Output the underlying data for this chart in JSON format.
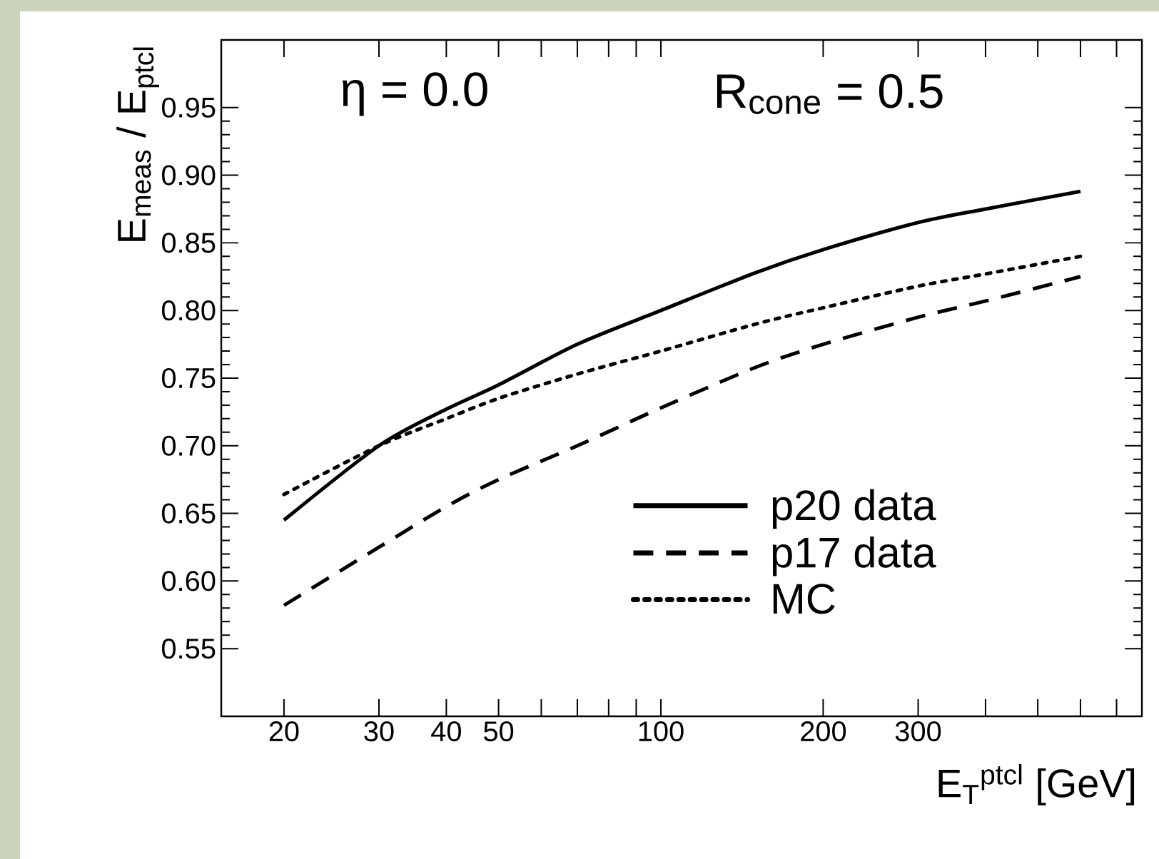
{
  "chart_data": {
    "type": "line",
    "xlabel": "E$_{T}$$^{ptcl}$ [GeV]",
    "ylabel": "E$_{meas}$ / E$_{ptcl}$",
    "annotations": [
      "η = 0.0",
      "R$_{cone}$ = 0.5"
    ],
    "log": "x",
    "xlim": [
      15.3,
      780
    ],
    "ylim": [
      0.5,
      1.0
    ],
    "xticks": [
      20,
      30,
      40,
      50,
      {
        "value": 60,
        "label": null
      },
      {
        "value": 70,
        "label": null
      },
      {
        "value": 80,
        "label": null
      },
      {
        "value": 90,
        "label": null
      },
      100,
      200,
      300,
      {
        "value": 400,
        "label": null
      },
      {
        "value": 500,
        "label": null
      },
      {
        "value": 600,
        "label": null
      },
      {
        "value": 700,
        "label": null
      }
    ],
    "yticks": [
      0.55,
      {
        "value": 0.6,
        "label": "0.60"
      },
      0.65,
      {
        "value": 0.7,
        "label": "0.70"
      },
      0.75,
      {
        "value": 0.8,
        "label": "0.80"
      },
      0.85,
      {
        "value": 0.9,
        "label": "0.90"
      },
      0.95
    ],
    "legend": "bottom right",
    "marker": "none",
    "x": [
      20,
      30,
      40,
      50,
      70,
      100,
      150,
      200,
      300,
      400,
      600
    ],
    "series": [
      {
        "name": "p20 data",
        "color": "#000000",
        "line_style": "solid",
        "values": [
          0.645,
          0.7,
          0.727,
          0.745,
          0.775,
          0.8,
          0.828,
          0.845,
          0.865,
          0.875,
          0.888
        ]
      },
      {
        "name": "p17 data",
        "color": "#000000",
        "line_style": "dashed",
        "values": [
          0.582,
          0.625,
          0.655,
          0.675,
          0.7,
          0.728,
          0.758,
          0.775,
          0.795,
          0.807,
          0.825
        ]
      },
      {
        "name": "MC",
        "color": "#000000",
        "line_style": "dotted",
        "values": [
          0.664,
          0.7,
          0.72,
          0.735,
          0.753,
          0.77,
          0.79,
          0.802,
          0.818,
          0.827,
          0.84
        ]
      }
    ]
  }
}
